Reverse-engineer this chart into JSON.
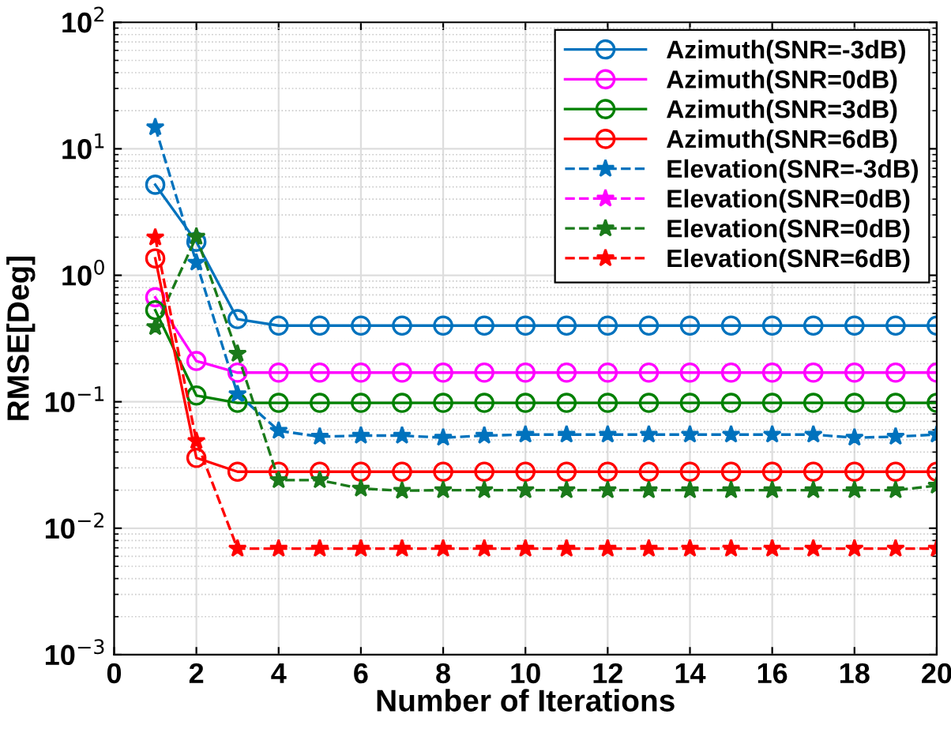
{
  "chart_data": {
    "type": "line",
    "xlabel": "Number of Iterations",
    "ylabel": "RMSE[Deg]",
    "x": [
      1,
      2,
      3,
      4,
      5,
      6,
      7,
      8,
      9,
      10,
      11,
      12,
      13,
      14,
      15,
      16,
      17,
      18,
      19,
      20
    ],
    "xlim": [
      0,
      20
    ],
    "xticks": [
      0,
      2,
      4,
      6,
      8,
      10,
      12,
      14,
      16,
      18,
      20
    ],
    "log": "y",
    "ylim": [
      0.001,
      100
    ],
    "yticks": [
      {
        "value": 0.001,
        "label": "10$^{−3}$"
      },
      {
        "value": 0.01,
        "label": "10$^{−2}$"
      },
      {
        "value": 0.1,
        "label": "10$^{−1}$"
      },
      {
        "value": 1,
        "label": "10$^{0}$"
      },
      {
        "value": 10,
        "label": "10$^{1}$"
      },
      {
        "value": 100,
        "label": "10$^{2}$"
      }
    ],
    "grid": true,
    "legend": "top right",
    "series": [
      {
        "name": "Azimuth(SNR=-3dB)",
        "color": "#0072bd",
        "marker": "circle",
        "line_style": "solid",
        "values": [
          5.2,
          1.84,
          0.45,
          0.4,
          0.4,
          0.4,
          0.4,
          0.4,
          0.4,
          0.4,
          0.4,
          0.4,
          0.4,
          0.4,
          0.4,
          0.4,
          0.4,
          0.4,
          0.4,
          0.4
        ]
      },
      {
        "name": "Azimuth(SNR=0dB)",
        "color": "#ff00ff",
        "marker": "circle",
        "line_style": "solid",
        "values": [
          0.67,
          0.21,
          0.17,
          0.17,
          0.17,
          0.17,
          0.17,
          0.17,
          0.17,
          0.17,
          0.17,
          0.17,
          0.17,
          0.17,
          0.17,
          0.17,
          0.17,
          0.17,
          0.17,
          0.17
        ]
      },
      {
        "name": "Azimuth(SNR=3dB)",
        "color": "#008000",
        "marker": "circle",
        "line_style": "solid",
        "values": [
          0.53,
          0.112,
          0.098,
          0.098,
          0.098,
          0.098,
          0.098,
          0.098,
          0.098,
          0.098,
          0.098,
          0.098,
          0.098,
          0.098,
          0.098,
          0.098,
          0.098,
          0.098,
          0.098,
          0.098
        ]
      },
      {
        "name": "Azimuth(SNR=6dB)",
        "color": "#ff0000",
        "marker": "circle",
        "line_style": "solid",
        "values": [
          1.36,
          0.036,
          0.028,
          0.028,
          0.028,
          0.028,
          0.028,
          0.028,
          0.028,
          0.028,
          0.028,
          0.028,
          0.028,
          0.028,
          0.028,
          0.028,
          0.028,
          0.028,
          0.028,
          0.028
        ]
      },
      {
        "name": "Elevation(SNR=-3dB)",
        "color": "#0072bd",
        "marker": "star",
        "line_style": "dashed",
        "values": [
          14.8,
          1.26,
          0.115,
          0.059,
          0.053,
          0.054,
          0.054,
          0.052,
          0.054,
          0.055,
          0.055,
          0.055,
          0.055,
          0.055,
          0.055,
          0.055,
          0.055,
          0.052,
          0.053,
          0.055
        ]
      },
      {
        "name": "Elevation(SNR=0dB)",
        "color": "#ff00ff",
        "marker": "star",
        "line_style": "dashed",
        "values": [
          null,
          null,
          null,
          null,
          null,
          null,
          null,
          null,
          null,
          null,
          null,
          null,
          null,
          null,
          null,
          null,
          null,
          null,
          null,
          null
        ]
      },
      {
        "name": "Elevation(SNR=0dB)",
        "color": "#1a7a1a",
        "marker": "star",
        "line_style": "dashed",
        "values": [
          0.39,
          2.02,
          0.24,
          0.024,
          0.024,
          0.0206,
          0.0198,
          0.02,
          0.02,
          0.02,
          0.02,
          0.02,
          0.02,
          0.02,
          0.02,
          0.02,
          0.02,
          0.02,
          0.02,
          0.0217
        ]
      },
      {
        "name": "Elevation(SNR=6dB)",
        "color": "#ff0000",
        "marker": "star",
        "line_style": "dashed",
        "values": [
          1.99,
          0.049,
          0.0069,
          0.0069,
          0.0069,
          0.0069,
          0.0069,
          0.0069,
          0.0069,
          0.0069,
          0.0069,
          0.0069,
          0.0069,
          0.0069,
          0.0069,
          0.0069,
          0.0069,
          0.0069,
          0.0069,
          0.0069
        ]
      }
    ]
  }
}
